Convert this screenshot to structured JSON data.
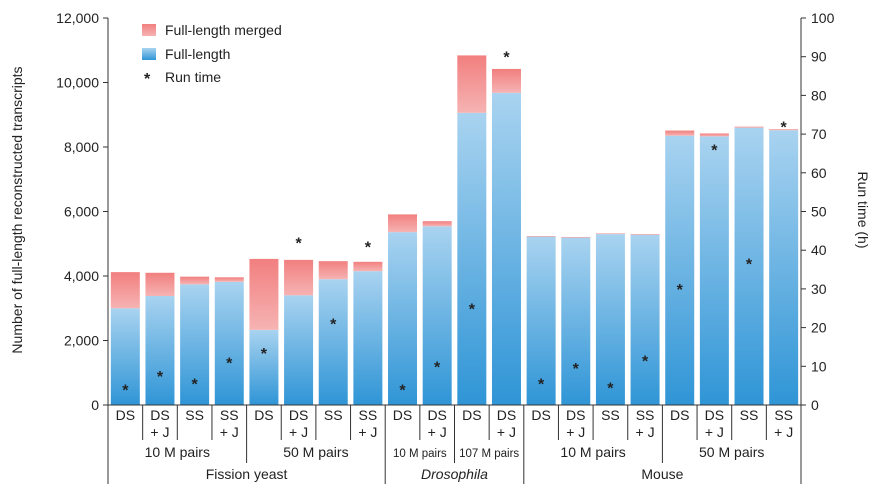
{
  "chart_data": {
    "type": "bar",
    "stacked": true,
    "ylabel": "Number of full-length reconstructed transcripts",
    "y2label": "Run time (h)",
    "ylim": [
      0,
      12000
    ],
    "y2lim": [
      0,
      100
    ],
    "yticks": [
      "0",
      "2,000",
      "4,000",
      "6,000",
      "8,000",
      "10,000",
      "12,000"
    ],
    "y2ticks": [
      "0",
      "10",
      "20",
      "30",
      "40",
      "50",
      "60",
      "70",
      "80",
      "90",
      "100"
    ],
    "legend_position": "top-left",
    "colors": {
      "full_length": "#4ea3d9",
      "full_length_merged": "#f07f7f",
      "run_time": "#000000"
    },
    "series": [
      {
        "name": "Full-length merged",
        "kind": "stack-top",
        "values": [
          1120,
          720,
          240,
          140,
          2200,
          1100,
          560,
          290,
          550,
          160,
          1780,
          740,
          20,
          20,
          20,
          20,
          160,
          90,
          30,
          30
        ]
      },
      {
        "name": "Full-length",
        "kind": "stack-bottom",
        "values": [
          3000,
          3380,
          3740,
          3820,
          2330,
          3400,
          3900,
          4150,
          5360,
          5540,
          9060,
          9680,
          5220,
          5190,
          5300,
          5280,
          8350,
          8330,
          8600,
          8520
        ]
      },
      {
        "name": "Run time",
        "kind": "marker",
        "axis": "y2",
        "marker": "*",
        "values": [
          4,
          7.5,
          5.5,
          11,
          13.5,
          42,
          21,
          41,
          4,
          10,
          25,
          90,
          5.5,
          9.5,
          4.5,
          11.5,
          30,
          66,
          36.5,
          72
        ]
      }
    ],
    "categories": [
      [
        "DS"
      ],
      [
        "DS",
        "+ J"
      ],
      [
        "SS"
      ],
      [
        "SS",
        "+ J"
      ],
      [
        "DS"
      ],
      [
        "DS",
        "+ J"
      ],
      [
        "SS"
      ],
      [
        "SS",
        "+ J"
      ],
      [
        "DS"
      ],
      [
        "DS",
        "+ J"
      ],
      [
        "DS"
      ],
      [
        "DS",
        "+ J"
      ],
      [
        "DS"
      ],
      [
        "DS",
        "+ J"
      ],
      [
        "SS"
      ],
      [
        "SS",
        "+ J"
      ],
      [
        "DS"
      ],
      [
        "DS",
        "+ J"
      ],
      [
        "SS"
      ],
      [
        "SS",
        "+ J"
      ]
    ],
    "subgroups": [
      {
        "label": "10 M pairs",
        "start": 0,
        "end": 3,
        "small": false
      },
      {
        "label": "50 M pairs",
        "start": 4,
        "end": 7,
        "small": false
      },
      {
        "label": "10 M pairs",
        "start": 8,
        "end": 9,
        "small": true
      },
      {
        "label": "107 M pairs",
        "start": 10,
        "end": 11,
        "small": true
      },
      {
        "label": "10 M pairs",
        "start": 12,
        "end": 15,
        "small": false
      },
      {
        "label": "50 M pairs",
        "start": 16,
        "end": 19,
        "small": false
      }
    ],
    "groups": [
      {
        "label": "Fission yeast",
        "start": 0,
        "end": 7,
        "italic": false
      },
      {
        "label": "Drosophila",
        "start": 8,
        "end": 11,
        "italic": true
      },
      {
        "label": "Mouse",
        "start": 12,
        "end": 19,
        "italic": false
      }
    ]
  }
}
